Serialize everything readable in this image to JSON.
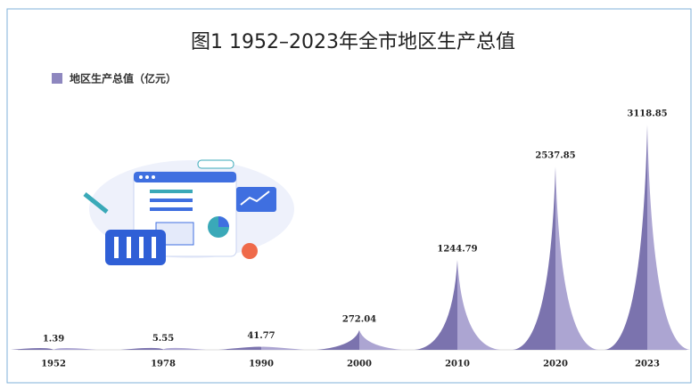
{
  "chart_data": {
    "type": "spike",
    "title": "图1 1952–2023年全市地区生产总值",
    "categories": [
      "1952",
      "1978",
      "1990",
      "2000",
      "2010",
      "2020",
      "2023"
    ],
    "series": [
      {
        "name": "地区生产总值（亿元）",
        "color": "#8e87bf",
        "values": [
          1.39,
          5.55,
          41.77,
          272.04,
          1244.79,
          2537.85,
          3118.85
        ]
      }
    ]
  }
}
